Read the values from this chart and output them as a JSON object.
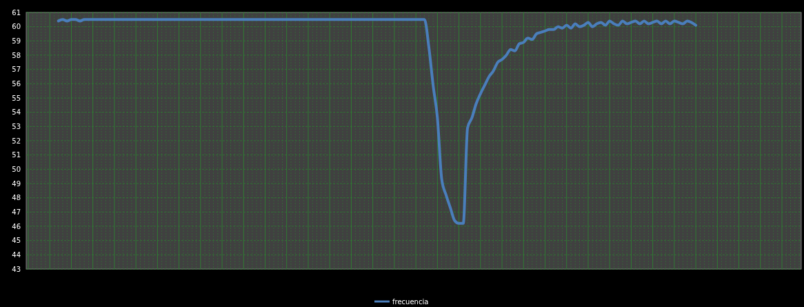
{
  "chart_data": {
    "type": "line",
    "categories": [
      null,
      null,
      null,
      null,
      null,
      null,
      null,
      null,
      null,
      null,
      null,
      null,
      null,
      null,
      null,
      null,
      null,
      null,
      null,
      null,
      null,
      null,
      null,
      null,
      null,
      null,
      null,
      null,
      null,
      null,
      null,
      null,
      null,
      null,
      null,
      null,
      null,
      null,
      null,
      null,
      null,
      null,
      null,
      null,
      null,
      null,
      null,
      null,
      null,
      null,
      null,
      null,
      null,
      null,
      null,
      null,
      null,
      null,
      null,
      null,
      null,
      null,
      null,
      null,
      null,
      null,
      null,
      null,
      null,
      null,
      null,
      null,
      null,
      null,
      null,
      null,
      null,
      null,
      null,
      null,
      null,
      null,
      null,
      null,
      null,
      null,
      null,
      null,
      null,
      null,
      null,
      null,
      null,
      null,
      null,
      null,
      null,
      null,
      null,
      null,
      null,
      null,
      null,
      null,
      null,
      null,
      null,
      null,
      null,
      null,
      null,
      null,
      null,
      null,
      null,
      null,
      null,
      null,
      null,
      null,
      null,
      null,
      null,
      null,
      null,
      null,
      null,
      null,
      null,
      null,
      null,
      null,
      null,
      null,
      null,
      null,
      null,
      null,
      null,
      null,
      null,
      null,
      null,
      null,
      null,
      null,
      null,
      null,
      null,
      null,
      null,
      null,
      null,
      null,
      null,
      null,
      null,
      null,
      null,
      null,
      null,
      null,
      null,
      null,
      null,
      null,
      null,
      null,
      null,
      null,
      null,
      null,
      null,
      null,
      null,
      null,
      null,
      null,
      null,
      null
    ],
    "series": [
      {
        "name": "frecuencia",
        "color": "#4a7ebb",
        "values": [
          null,
          null,
          null,
          null,
          null,
          null,
          null,
          60.4,
          60.5,
          60.4,
          60.5,
          60.5,
          60.4,
          60.5,
          60.5,
          60.5,
          60.5,
          60.5,
          60.5,
          60.5,
          60.5,
          60.5,
          60.5,
          60.5,
          60.5,
          60.5,
          60.5,
          60.5,
          60.5,
          60.5,
          60.5,
          60.5,
          60.5,
          60.5,
          60.5,
          60.5,
          60.5,
          60.5,
          60.5,
          60.5,
          60.5,
          60.5,
          60.5,
          60.5,
          60.5,
          60.5,
          60.5,
          60.5,
          60.5,
          60.5,
          60.5,
          60.5,
          60.5,
          60.5,
          60.5,
          60.5,
          60.5,
          60.5,
          60.5,
          60.5,
          60.5,
          60.5,
          60.5,
          60.5,
          60.5,
          60.5,
          60.5,
          60.5,
          60.5,
          60.5,
          60.5,
          60.5,
          60.5,
          60.5,
          60.5,
          60.5,
          60.5,
          60.5,
          60.5,
          60.5,
          60.5,
          60.5,
          60.5,
          60.5,
          60.5,
          60.5,
          60.5,
          60.5,
          60.5,
          60.5,
          60.5,
          60.5,
          60.5,
          58.6,
          55.9,
          53.6,
          49.3,
          48.2,
          47.3,
          46.4,
          46.2,
          46.2,
          52.9,
          53.6,
          54.6,
          55.3,
          55.9,
          56.5,
          56.9,
          57.5,
          57.7,
          58.0,
          58.4,
          58.3,
          58.8,
          58.9,
          59.2,
          59.1,
          59.5,
          59.6,
          59.7,
          59.8,
          59.8,
          60.0,
          59.9,
          60.1,
          59.9,
          60.2,
          60.0,
          60.1,
          60.3,
          60.0,
          60.2,
          60.3,
          60.1,
          60.4,
          60.2,
          60.1,
          60.4,
          60.2,
          60.3,
          60.4,
          60.2,
          60.4,
          60.2,
          60.3,
          60.4,
          60.2,
          60.4,
          60.2,
          60.4,
          60.3,
          60.2,
          60.4,
          60.3,
          60.1,
          null,
          null,
          null,
          null,
          null,
          null,
          null,
          null,
          null,
          null,
          null,
          null,
          null,
          null,
          null,
          null,
          null,
          null,
          null,
          null,
          null,
          null,
          null,
          null
        ]
      }
    ],
    "ylim": [
      43,
      61
    ],
    "yticks": [
      43,
      44,
      45,
      46,
      47,
      48,
      49,
      50,
      51,
      52,
      53,
      54,
      55,
      56,
      57,
      58,
      59,
      60,
      61
    ],
    "grid": true,
    "legend": "bottom",
    "line_style": "solid",
    "marker": "none"
  }
}
